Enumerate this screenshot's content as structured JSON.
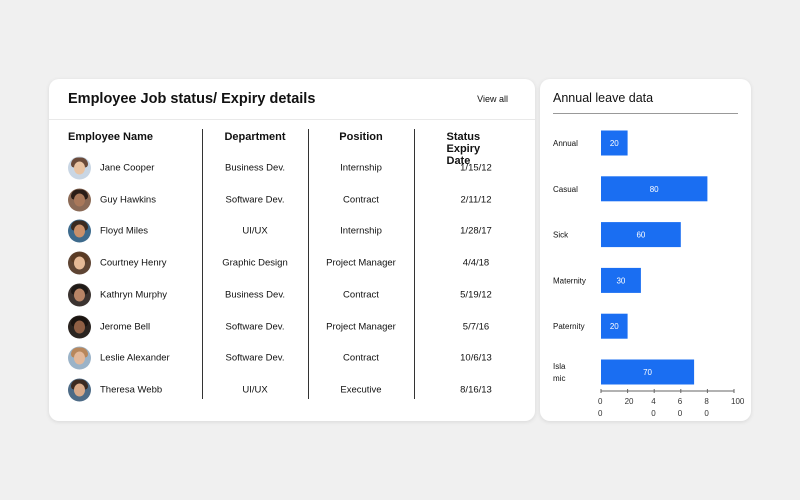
{
  "table_card": {
    "title": "Employee Job status/ Expiry details",
    "view_all": "View all",
    "columns": [
      "Employee Name",
      "Department",
      "Position",
      "Status Expiry Date"
    ],
    "rows": [
      {
        "name": "Jane Cooper",
        "department": "Business Dev.",
        "position": "Internship",
        "expiry": "1/15/12",
        "avatar": {
          "skin": "#e9c3a2",
          "hair": "#6b4b3a",
          "bg": "#c9d6e4"
        }
      },
      {
        "name": "Guy Hawkins",
        "department": "Software Dev.",
        "position": "Contract",
        "expiry": "2/11/12",
        "avatar": {
          "skin": "#a9785a",
          "hair": "#2a1d17",
          "bg": "#8b6a56"
        }
      },
      {
        "name": "Floyd Miles",
        "department": "UI/UX",
        "position": "Internship",
        "expiry": "1/28/17",
        "avatar": {
          "skin": "#c9906a",
          "hair": "#3a2a20",
          "bg": "#3d6a8c"
        }
      },
      {
        "name": "Courtney Henry",
        "department": "Graphic Design",
        "position": "Project Manager",
        "expiry": "4/4/18",
        "avatar": {
          "skin": "#e5b996",
          "hair": "#5a3b24",
          "bg": "#5e4433"
        }
      },
      {
        "name": "Kathryn Murphy",
        "department": "Business Dev.",
        "position": "Contract",
        "expiry": "5/19/12",
        "avatar": {
          "skin": "#b78466",
          "hair": "#1f1a17",
          "bg": "#3b3330"
        }
      },
      {
        "name": "Jerome Bell",
        "department": "Software Dev.",
        "position": "Project Manager",
        "expiry": "5/7/16",
        "avatar": {
          "skin": "#8f5f44",
          "hair": "#1a1410",
          "bg": "#2a2420"
        }
      },
      {
        "name": "Leslie Alexander",
        "department": "Software Dev.",
        "position": "Contract",
        "expiry": "10/6/13",
        "avatar": {
          "skin": "#e3b89a",
          "hair": "#b8875c",
          "bg": "#9bb3c8"
        }
      },
      {
        "name": "Theresa Webb",
        "department": "UI/UX",
        "position": "Executive",
        "expiry": "8/16/13",
        "avatar": {
          "skin": "#d8a988",
          "hair": "#3b2a21",
          "bg": "#4d6b86"
        }
      }
    ]
  },
  "leave_card": {
    "title": "Annual leave data",
    "bar_color": "#1a6ef2",
    "tick_labels": [
      {
        "line1": "0",
        "line2": "0"
      },
      {
        "line1": "20",
        "line2": ""
      },
      {
        "line1": "4",
        "line2": "0"
      },
      {
        "line1": "6",
        "line2": "0"
      },
      {
        "line1": "8",
        "line2": "0"
      },
      {
        "line1": "100",
        "line2": ""
      }
    ]
  },
  "chart_data": {
    "type": "bar",
    "orientation": "horizontal",
    "title": "Annual leave data",
    "categories": [
      "Annual",
      "Casual",
      "Sick",
      "Maternity",
      "Paternity",
      "Islamic"
    ],
    "category_display": [
      [
        "Annual"
      ],
      [
        "Casual"
      ],
      [
        "Sick"
      ],
      [
        "Maternity"
      ],
      [
        "Paternity"
      ],
      [
        "Isla",
        "mic"
      ]
    ],
    "values": [
      20,
      80,
      60,
      30,
      20,
      70
    ],
    "xlim": [
      0,
      100
    ],
    "grid": false
  }
}
